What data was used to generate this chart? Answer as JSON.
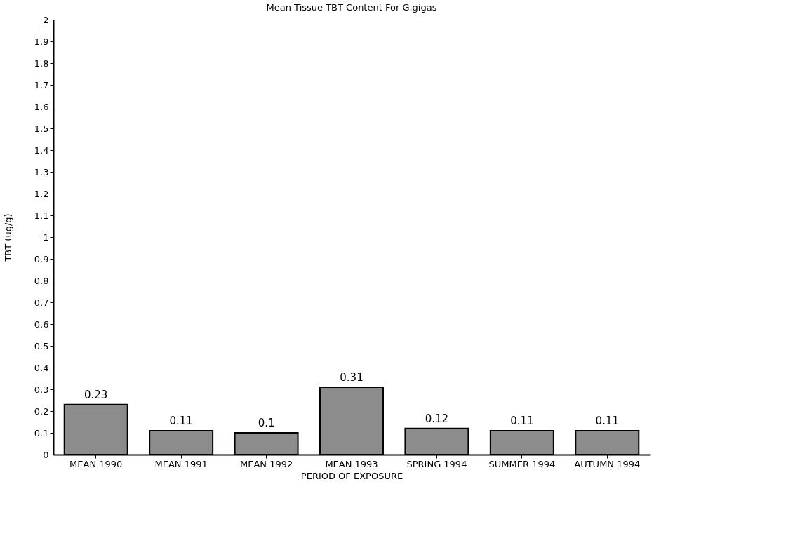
{
  "chart_data": {
    "type": "bar",
    "title": "Mean Tissue TBT Content For G.gigas",
    "xlabel": "PERIOD OF EXPOSURE",
    "ylabel": "TBT (ug/g)",
    "categories": [
      "MEAN 1990",
      "MEAN 1991",
      "MEAN 1992",
      "MEAN 1993",
      "SPRING 1994",
      "SUMMER 1994",
      "AUTUMN 1994"
    ],
    "values": [
      0.23,
      0.11,
      0.1,
      0.31,
      0.12,
      0.11,
      0.11
    ],
    "color": "#8c8c8c",
    "ylim": [
      0,
      2
    ],
    "yticks": [
      0,
      0.1,
      0.2,
      0.3,
      0.4,
      0.5,
      0.6,
      0.7,
      0.8,
      0.9,
      1,
      1.1,
      1.2,
      1.3,
      1.4,
      1.5,
      1.6,
      1.7,
      1.8,
      1.9,
      2
    ],
    "data_labels": true,
    "grid": false
  }
}
